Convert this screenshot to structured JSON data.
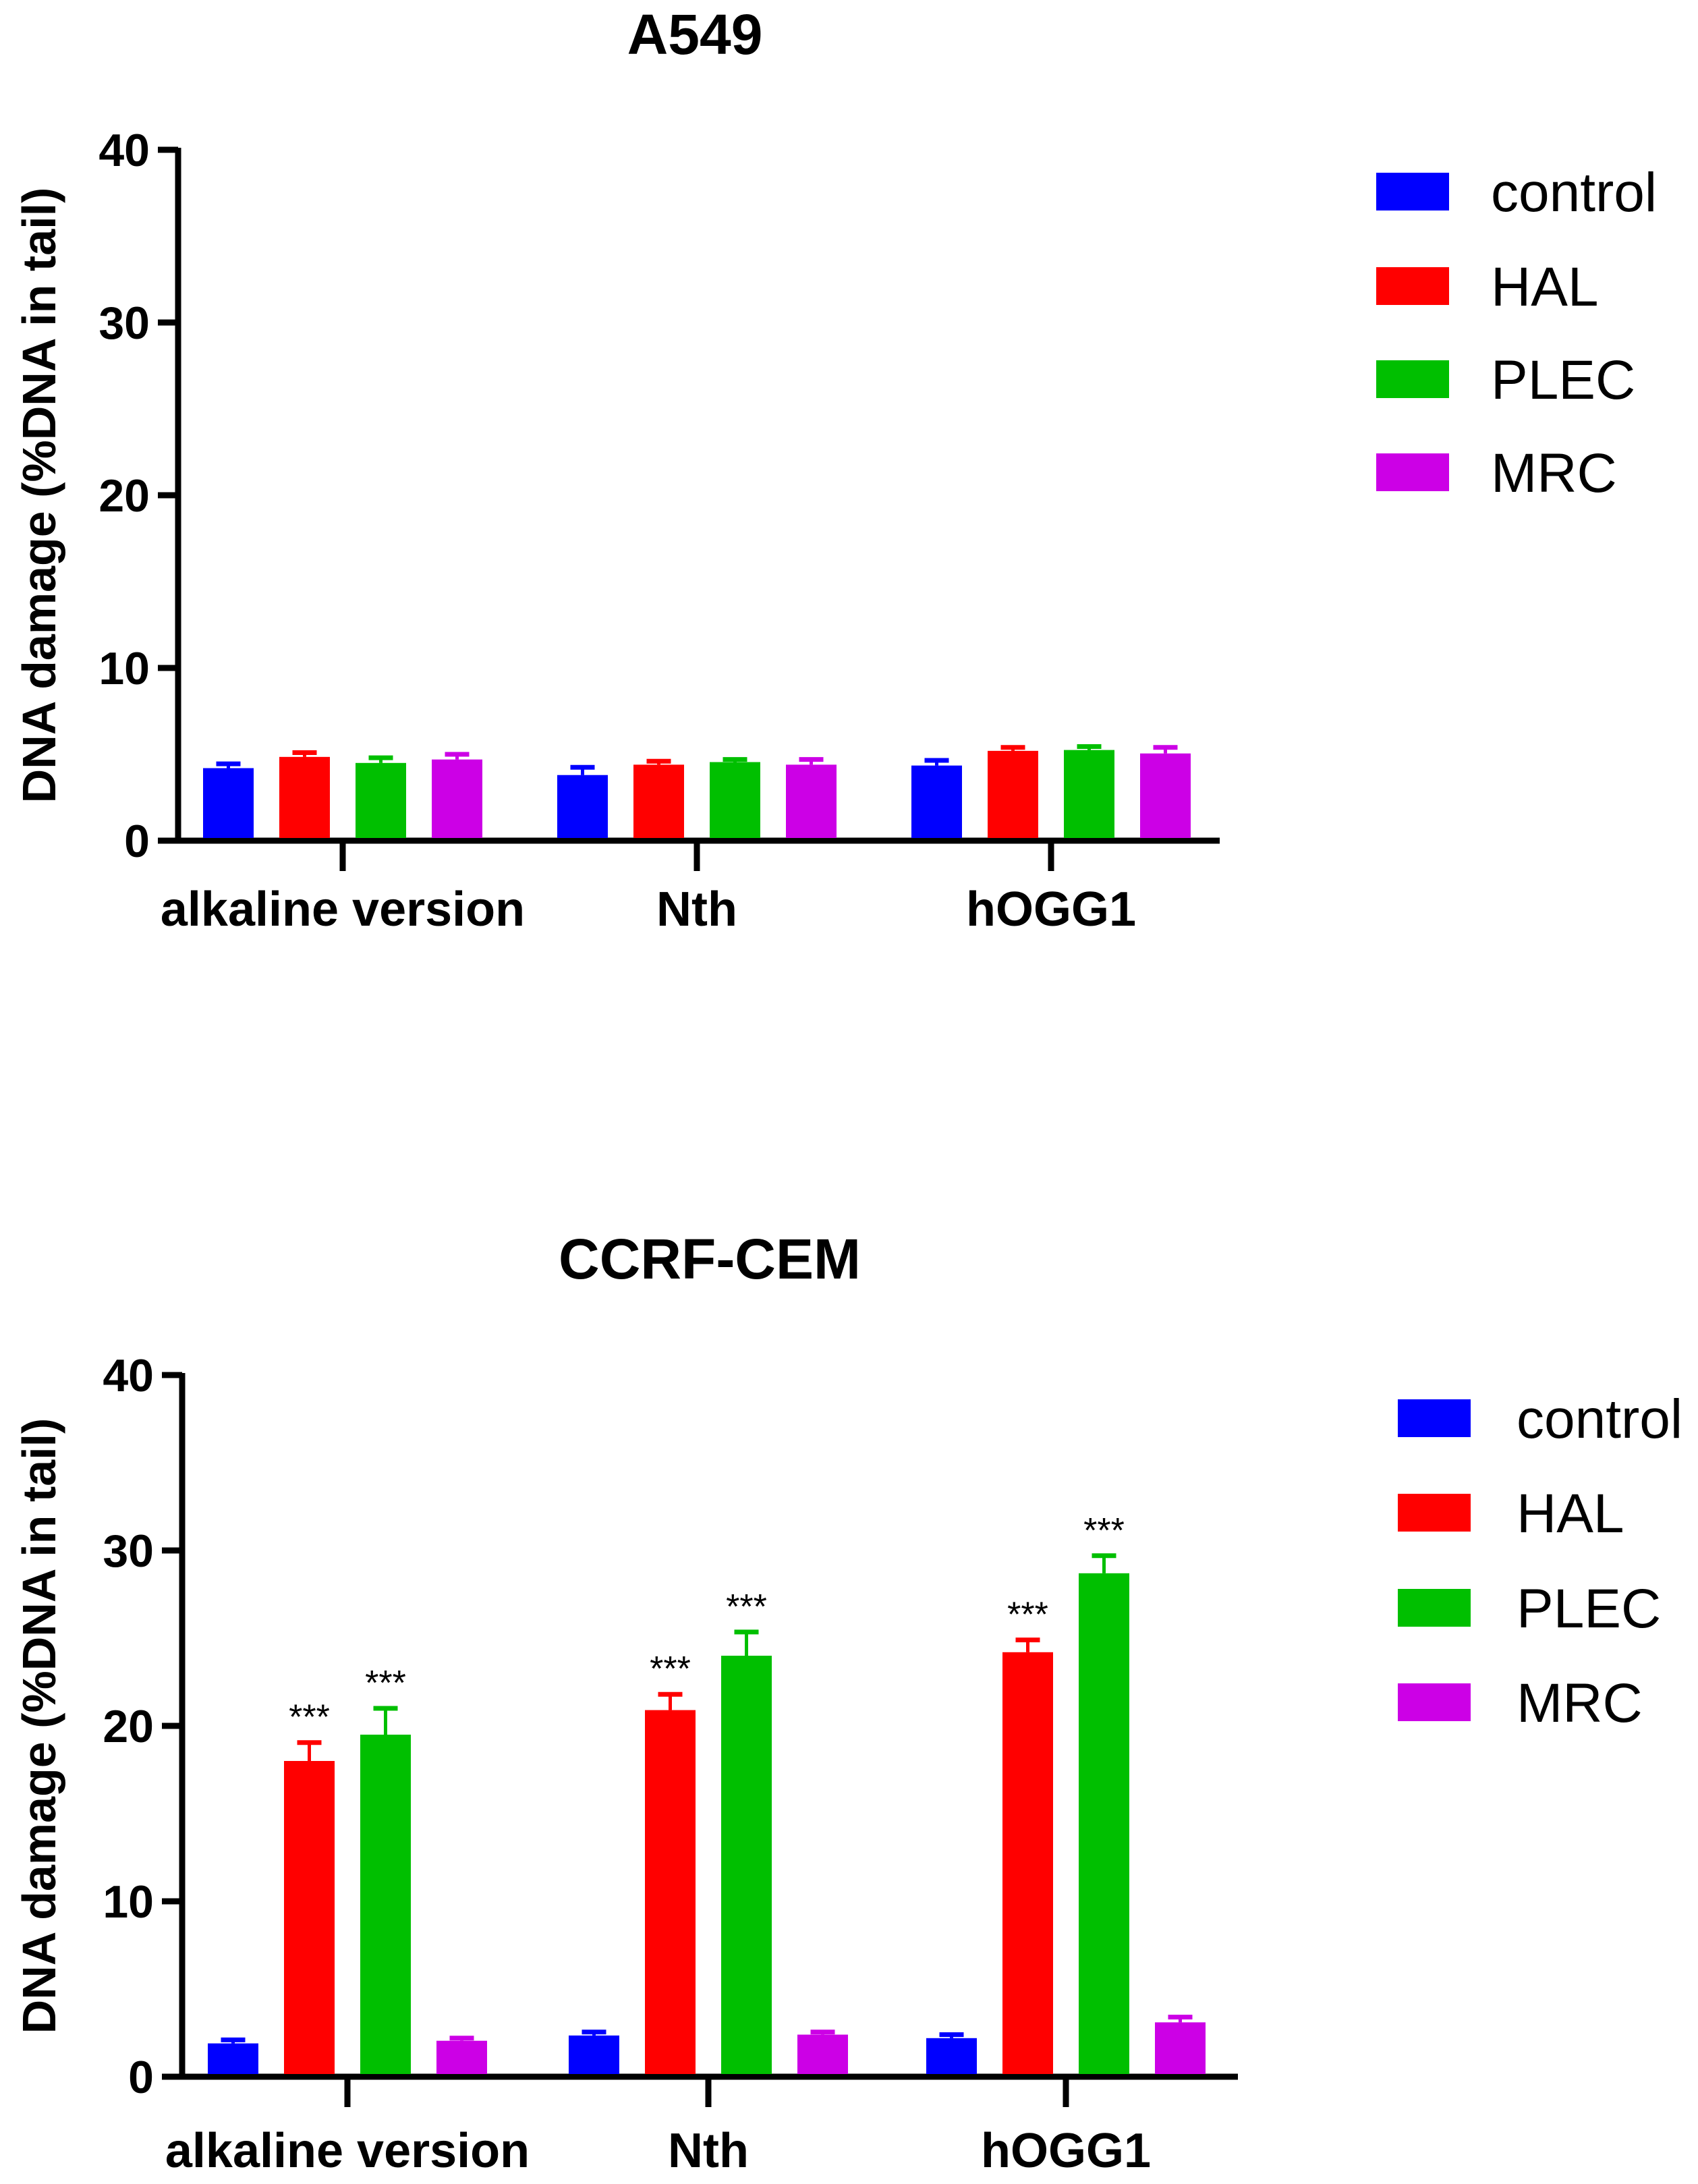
{
  "chart_data": [
    {
      "type": "bar",
      "title": "A549",
      "xlabel": "",
      "ylabel": "DNA damage (%DNA in tail)",
      "ylim": [
        0,
        40
      ],
      "yticks": [
        0,
        10,
        20,
        30,
        40
      ],
      "categories": [
        "alkaline version",
        "Nth",
        "hOGG1"
      ],
      "legend_position": "top-right",
      "series": [
        {
          "name": "control",
          "color": "#0000ff",
          "values": [
            4.2,
            3.8,
            4.35
          ],
          "errors": [
            0.25,
            0.45,
            0.3
          ],
          "annotations": [
            "",
            "",
            ""
          ]
        },
        {
          "name": "HAL",
          "color": "#ff0000",
          "values": [
            4.85,
            4.4,
            5.2
          ],
          "errors": [
            0.25,
            0.2,
            0.2
          ],
          "annotations": [
            "",
            "",
            ""
          ]
        },
        {
          "name": "PLEC",
          "color": "#00bf00",
          "values": [
            4.5,
            4.55,
            5.25
          ],
          "errors": [
            0.3,
            0.15,
            0.2
          ],
          "annotations": [
            "",
            "",
            ""
          ]
        },
        {
          "name": "MRC",
          "color": "#cc00e6",
          "values": [
            4.7,
            4.4,
            5.05
          ],
          "errors": [
            0.3,
            0.3,
            0.35
          ],
          "annotations": [
            "",
            "",
            ""
          ]
        }
      ]
    },
    {
      "type": "bar",
      "title": "CCRF-CEM",
      "xlabel": "",
      "ylabel": "DNA damage (%DNA in tail)",
      "ylim": [
        0,
        40
      ],
      "yticks": [
        0,
        10,
        20,
        30,
        40
      ],
      "categories": [
        "alkaline version",
        "Nth",
        "hOGG1"
      ],
      "legend_position": "right",
      "series": [
        {
          "name": "control",
          "color": "#0000ff",
          "values": [
            1.9,
            2.35,
            2.2
          ],
          "errors": [
            0.2,
            0.2,
            0.2
          ],
          "annotations": [
            "",
            "",
            ""
          ]
        },
        {
          "name": "HAL",
          "color": "#ff0000",
          "values": [
            18.0,
            20.9,
            24.2
          ],
          "errors": [
            1.05,
            0.9,
            0.7
          ],
          "annotations": [
            "***",
            "***",
            "***"
          ]
        },
        {
          "name": "PLEC",
          "color": "#00bf00",
          "values": [
            19.5,
            24.0,
            28.7
          ],
          "errors": [
            1.5,
            1.35,
            1.0
          ],
          "annotations": [
            "***",
            "***",
            "***"
          ]
        },
        {
          "name": "MRC",
          "color": "#cc00e6",
          "values": [
            2.05,
            2.4,
            3.1
          ],
          "errors": [
            0.15,
            0.15,
            0.3
          ],
          "annotations": [
            "",
            "",
            ""
          ]
        }
      ]
    }
  ]
}
